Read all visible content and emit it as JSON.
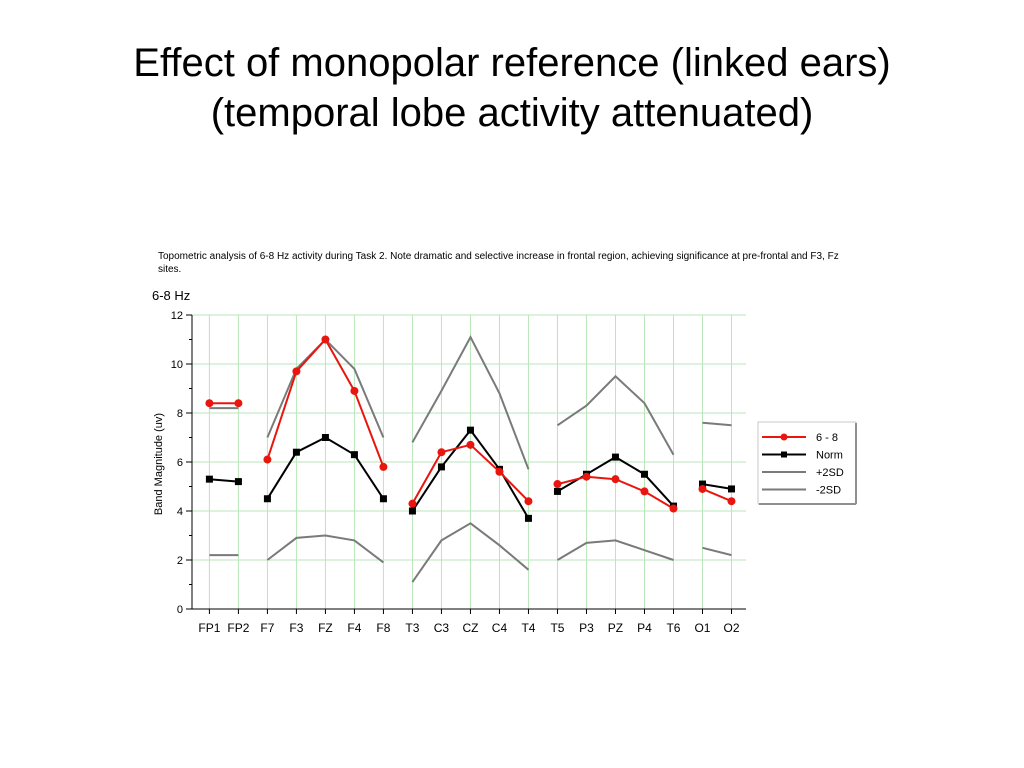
{
  "slide": {
    "title_line1": "Effect of monopolar reference (linked ears)",
    "title_line2": "(temporal lobe activity attenuated)"
  },
  "caption": "Topometric analysis of 6-8 Hz activity during Task 2.  Note dramatic and selective increase in frontal region, achieving significance at pre-frontal and F3, Fz sites.",
  "chart_data": {
    "type": "line",
    "title": "6-8 Hz",
    "ylabel": "Band Magnitude (uv)",
    "xlabel": "",
    "ylim": [
      0,
      12
    ],
    "yticks": [
      0,
      2,
      4,
      6,
      8,
      10,
      12
    ],
    "grid": true,
    "legend_position": "right",
    "categories": [
      "FP1",
      "FP2",
      "F7",
      "F3",
      "FZ",
      "F4",
      "F8",
      "T3",
      "C3",
      "CZ",
      "C4",
      "T4",
      "T5",
      "P3",
      "PZ",
      "P4",
      "T6",
      "O1",
      "O2"
    ],
    "groups": [
      [
        0,
        1
      ],
      [
        2,
        3,
        4,
        5,
        6
      ],
      [
        7,
        8,
        9,
        10,
        11
      ],
      [
        12,
        13,
        14,
        15,
        16
      ],
      [
        17,
        18
      ]
    ],
    "series": [
      {
        "name": "6 - 8",
        "color": "#e8160f",
        "marker": "circle",
        "values": [
          8.4,
          8.4,
          6.1,
          9.7,
          11.0,
          8.9,
          5.8,
          4.3,
          6.4,
          6.7,
          5.6,
          4.4,
          5.1,
          5.4,
          5.3,
          4.8,
          4.1,
          4.9,
          4.4
        ]
      },
      {
        "name": "Norm",
        "color": "#000000",
        "marker": "square",
        "values": [
          5.3,
          5.2,
          4.5,
          6.4,
          7.0,
          6.3,
          4.5,
          4.0,
          5.8,
          7.3,
          5.7,
          3.7,
          4.8,
          5.5,
          6.2,
          5.5,
          4.2,
          5.1,
          4.9
        ]
      },
      {
        "name": "+2SD",
        "color": "#7a7a7a",
        "marker": "none",
        "values": [
          8.2,
          8.2,
          7.0,
          9.8,
          11.0,
          9.8,
          7.0,
          6.8,
          8.9,
          11.1,
          8.8,
          5.7,
          7.5,
          8.3,
          9.5,
          8.4,
          6.3,
          7.6,
          7.5
        ]
      },
      {
        "name": "-2SD",
        "color": "#7a7a7a",
        "marker": "none",
        "values": [
          2.2,
          2.2,
          2.0,
          2.9,
          3.0,
          2.8,
          1.9,
          1.1,
          2.8,
          3.5,
          2.6,
          1.6,
          2.0,
          2.7,
          2.8,
          2.4,
          2.0,
          2.5,
          2.2
        ]
      }
    ]
  }
}
